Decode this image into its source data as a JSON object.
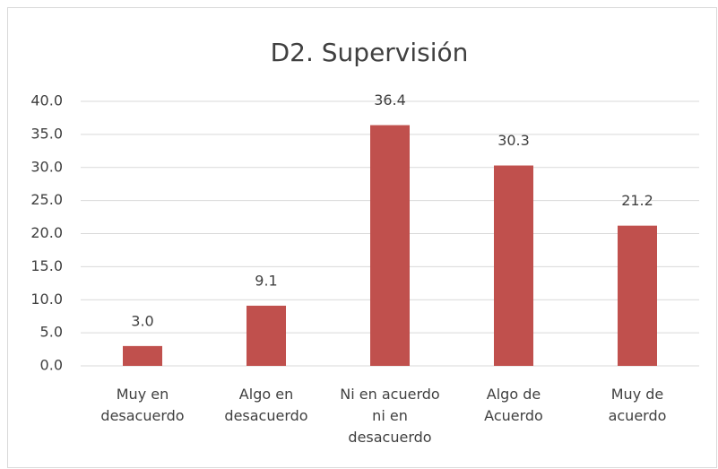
{
  "chart_data": {
    "type": "bar",
    "title": "D2. Supervisión",
    "categories": [
      "Muy en\ndesacuerdo",
      "Algo en\ndesacuerdo",
      "Ni en acuerdo\nni en\ndesacuerdo",
      "Algo de\nAcuerdo",
      "Muy de\nacuerdo"
    ],
    "values": [
      3.0,
      9.1,
      36.4,
      30.3,
      21.2
    ],
    "value_labels": [
      "3.0",
      "9.1",
      "36.4",
      "30.3",
      "21.2"
    ],
    "color": "#c0504d",
    "ylim": [
      0,
      40
    ],
    "yticks": [
      {
        "value": 0,
        "label": "0.0"
      },
      {
        "value": 5,
        "label": "5.0"
      },
      {
        "value": 10,
        "label": "10.0"
      },
      {
        "value": 15,
        "label": "15.0"
      },
      {
        "value": 20,
        "label": "20.0"
      },
      {
        "value": 25,
        "label": "25.0"
      },
      {
        "value": 30,
        "label": "30.0"
      },
      {
        "value": 35,
        "label": "35.0"
      },
      {
        "value": 40,
        "label": "40.0"
      }
    ],
    "grid": true
  }
}
